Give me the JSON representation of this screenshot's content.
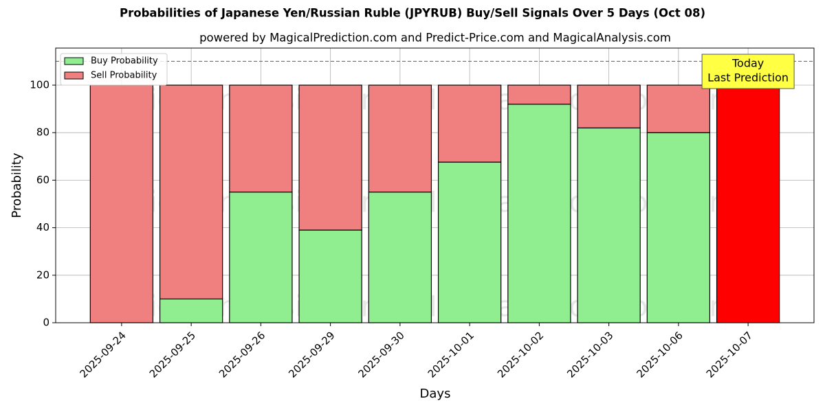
{
  "chart_data": {
    "type": "stacked_bar",
    "title": "Probabilities of Japanese Yen/Russian Ruble (JPYRUB) Buy/Sell Signals Over 5 Days (Oct 08)",
    "subtitle": "powered by MagicalPrediction.com and Predict-Price.com and MagicalAnalysis.com",
    "x_label": "Days",
    "y_label": "Probability",
    "categories": [
      "2025-09-24",
      "2025-09-25",
      "2025-09-26",
      "2025-09-29",
      "2025-09-30",
      "2025-10-01",
      "2025-10-02",
      "2025-10-03",
      "2025-10-06",
      "2025-10-07"
    ],
    "series": [
      {
        "name": "Buy Probability",
        "color": "#90ee90",
        "values": [
          0,
          10,
          55,
          39,
          55,
          67.6,
          92,
          82,
          80,
          0
        ]
      },
      {
        "name": "Sell Probability",
        "color": "#f08080",
        "values": [
          100,
          90,
          45,
          61,
          45,
          32.4,
          8,
          18,
          20,
          100
        ],
        "bar_colors": [
          "#f08080",
          "#f08080",
          "#f08080",
          "#f08080",
          "#f08080",
          "#f08080",
          "#f08080",
          "#f08080",
          "#f08080",
          "#ff0000"
        ]
      }
    ],
    "ylim": [
      0,
      115.6
    ],
    "yticks": [
      0,
      20,
      40,
      60,
      80,
      100
    ],
    "reference_line": 110,
    "annotation": [
      "Today",
      "Last Prediction"
    ],
    "annotation_color": "#ffff44",
    "watermarks": [
      "MagicalAnalysis.com",
      "MagicalPrediction.com"
    ],
    "grid": true,
    "legend": "upper left"
  }
}
